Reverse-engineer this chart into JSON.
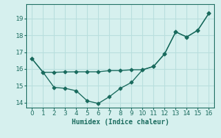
{
  "x": [
    0,
    1,
    2,
    3,
    4,
    5,
    6,
    7,
    8,
    9,
    10,
    11,
    12,
    13,
    14,
    15,
    16
  ],
  "y_lower": [
    16.6,
    15.8,
    14.9,
    14.85,
    14.7,
    14.1,
    13.95,
    14.35,
    14.85,
    15.2,
    15.95,
    16.15,
    16.9,
    18.2,
    17.9,
    18.3,
    19.3
  ],
  "y_upper": [
    16.6,
    15.8,
    15.8,
    15.82,
    15.83,
    15.83,
    15.83,
    15.9,
    15.9,
    15.95,
    15.95,
    16.15,
    16.9,
    18.2,
    17.9,
    18.3,
    19.3
  ],
  "line_color": "#1a6b5e",
  "bg_color": "#d6f0ee",
  "grid_color": "#b8dedd",
  "xlabel": "Humidex (Indice chaleur)",
  "xlim": [
    -0.5,
    16.5
  ],
  "ylim": [
    13.7,
    19.85
  ],
  "yticks": [
    14,
    15,
    16,
    17,
    18,
    19
  ],
  "xticks": [
    0,
    1,
    2,
    3,
    4,
    5,
    6,
    7,
    8,
    9,
    10,
    11,
    12,
    13,
    14,
    15,
    16
  ],
  "xlabel_fontsize": 7,
  "tick_fontsize": 6.5,
  "marker": "D",
  "marker_size": 2.5,
  "linewidth": 1.0
}
